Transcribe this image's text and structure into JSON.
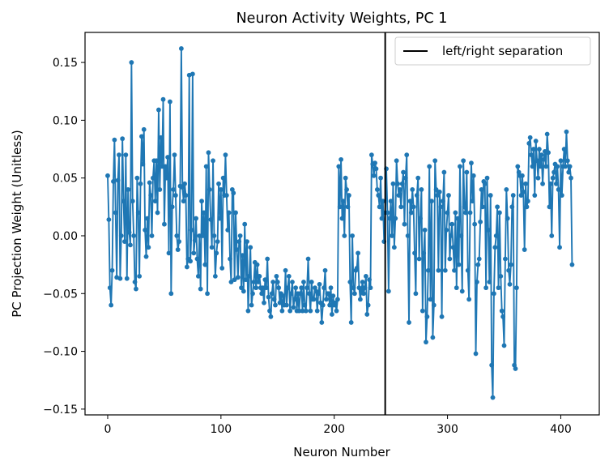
{
  "chart_data": {
    "type": "line",
    "title": "Neuron Activity Weights, PC 1",
    "xlabel": "Neuron Number",
    "ylabel": "PC Projection Weight (Unitless)",
    "xlim": [
      -20,
      434
    ],
    "ylim": [
      -0.155,
      0.176
    ],
    "xticks": [
      0,
      100,
      200,
      300,
      400
    ],
    "yticks": [
      -0.15,
      -0.1,
      -0.05,
      0.0,
      0.05,
      0.1,
      0.15
    ],
    "xtick_labels": [
      "0",
      "100",
      "200",
      "300",
      "400"
    ],
    "ytick_labels": [
      "−0.15",
      "−0.10",
      "−0.05",
      "0.00",
      "0.05",
      "0.10",
      "0.15"
    ],
    "grid": false,
    "legend": {
      "placement": "top-right",
      "entries": [
        "left/right separation"
      ]
    },
    "vline": {
      "x": 245,
      "name": "left/right separation",
      "color": "#000000"
    },
    "series": [
      {
        "color": "#1f77b4",
        "marker": "circle",
        "x_start": 0,
        "x_step": 1,
        "values": [
          0.052,
          0.014,
          -0.045,
          -0.06,
          -0.03,
          0.047,
          0.083,
          0.02,
          -0.036,
          0.048,
          0.07,
          -0.037,
          0.0,
          0.084,
          0.03,
          -0.005,
          0.07,
          -0.037,
          0.04,
          0.003,
          -0.008,
          0.15,
          0.03,
          0.0,
          -0.04,
          -0.046,
          0.05,
          0.02,
          -0.035,
          0.045,
          0.086,
          0.062,
          0.092,
          0.005,
          -0.018,
          0.015,
          -0.01,
          0.046,
          0.035,
          0.0,
          0.05,
          0.065,
          0.03,
          0.065,
          0.02,
          0.109,
          0.04,
          0.085,
          0.06,
          0.118,
          0.01,
          0.06,
          0.05,
          0.068,
          -0.015,
          0.116,
          -0.05,
          0.025,
          0.04,
          0.07,
          0.035,
          0.0,
          -0.012,
          -0.005,
          0.043,
          0.162,
          0.042,
          0.03,
          0.045,
          0.035,
          -0.027,
          -0.02,
          0.139,
          -0.022,
          0.005,
          0.14,
          -0.015,
          -0.004,
          0.015,
          -0.02,
          -0.035,
          0.0,
          -0.046,
          0.03,
          0.0,
          0.02,
          -0.025,
          0.06,
          -0.05,
          0.072,
          0.04,
          0.014,
          -0.01,
          0.065,
          0.0,
          -0.035,
          -0.015,
          -0.005,
          0.045,
          0.015,
          0.04,
          -0.028,
          0.05,
          0.035,
          0.07,
          0.035,
          0.005,
          0.02,
          -0.02,
          -0.04,
          0.04,
          0.037,
          -0.038,
          0.02,
          -0.012,
          -0.036,
          -0.005,
          0.0,
          -0.045,
          -0.017,
          -0.048,
          0.01,
          -0.038,
          -0.005,
          -0.065,
          -0.035,
          -0.01,
          -0.06,
          -0.05,
          -0.04,
          -0.023,
          -0.045,
          -0.025,
          -0.04,
          -0.035,
          -0.045,
          -0.05,
          -0.045,
          -0.058,
          -0.038,
          -0.045,
          -0.02,
          -0.053,
          -0.065,
          -0.07,
          -0.05,
          -0.04,
          -0.055,
          -0.06,
          -0.035,
          -0.04,
          -0.045,
          -0.058,
          -0.05,
          -0.065,
          -0.052,
          -0.06,
          -0.03,
          -0.06,
          -0.045,
          -0.035,
          -0.065,
          -0.05,
          -0.04,
          -0.062,
          -0.055,
          -0.045,
          -0.065,
          -0.05,
          -0.065,
          -0.05,
          -0.045,
          -0.065,
          -0.04,
          -0.06,
          -0.065,
          -0.045,
          -0.02,
          -0.05,
          -0.065,
          -0.04,
          -0.055,
          -0.055,
          -0.045,
          -0.048,
          -0.065,
          -0.05,
          -0.042,
          -0.058,
          -0.075,
          -0.06,
          -0.045,
          -0.03,
          -0.055,
          -0.05,
          -0.05,
          -0.06,
          -0.045,
          -0.068,
          -0.052,
          -0.06,
          -0.058,
          -0.065,
          -0.055,
          0.06,
          0.025,
          0.066,
          0.015,
          0.03,
          0.0,
          0.05,
          0.04,
          0.025,
          0.035,
          -0.04,
          -0.075,
          0.0,
          -0.045,
          -0.05,
          -0.03,
          -0.028,
          -0.015,
          -0.045,
          -0.055,
          -0.047,
          -0.04,
          -0.05,
          -0.045,
          -0.035,
          -0.068,
          -0.06,
          -0.038,
          -0.045,
          0.07,
          0.062,
          0.052,
          0.063,
          0.058,
          0.04,
          0.035,
          0.025,
          0.05,
          0.015,
          0.03,
          -0.005,
          0.02,
          0.058,
          0.02,
          -0.048,
          0.015,
          0.03,
          0.0,
          0.045,
          -0.01,
          0.015,
          0.065,
          0.045,
          0.035,
          0.04,
          0.025,
          0.045,
          0.055,
          0.01,
          0.05,
          0.07,
          0.0,
          -0.075,
          0.03,
          0.02,
          0.04,
          0.025,
          -0.015,
          -0.05,
          0.035,
          0.05,
          -0.02,
          0.015,
          0.04,
          -0.065,
          -0.015,
          0.005,
          -0.092,
          -0.07,
          -0.03,
          0.06,
          -0.055,
          0.03,
          -0.088,
          -0.06,
          0.065,
          0.04,
          0.035,
          -0.03,
          0.038,
          0.025,
          -0.07,
          0.03,
          0.055,
          -0.03,
          0.005,
          0.02,
          0.035,
          -0.02,
          0.0,
          0.01,
          -0.01,
          -0.03,
          0.02,
          -0.045,
          0.015,
          -0.025,
          0.06,
          0.0,
          -0.048,
          0.065,
          0.025,
          0.02,
          0.055,
          -0.03,
          -0.055,
          0.02,
          0.063,
          0.03,
          0.052,
          0.01,
          -0.102,
          -0.04,
          -0.025,
          -0.02,
          0.012,
          0.04,
          0.025,
          0.047,
          0.045,
          -0.045,
          0.05,
          0.005,
          -0.04,
          0.035,
          -0.112,
          -0.14,
          -0.05,
          -0.01,
          0.0,
          0.025,
          -0.045,
          0.02,
          -0.035,
          -0.065,
          -0.07,
          -0.095,
          -0.02,
          0.04,
          0.015,
          -0.03,
          -0.042,
          -0.025,
          0.025,
          0.035,
          -0.112,
          -0.115,
          -0.045,
          0.06,
          0.055,
          0.052,
          0.035,
          0.052,
          0.038,
          -0.012,
          0.045,
          0.025,
          0.03,
          0.08,
          0.085,
          0.07,
          0.06,
          0.075,
          0.035,
          0.082,
          0.065,
          0.05,
          0.075,
          0.06,
          0.07,
          0.045,
          0.066,
          0.073,
          0.06,
          0.088,
          0.072,
          0.025,
          0.045,
          0.0,
          0.05,
          0.055,
          0.062,
          0.045,
          0.06,
          0.04,
          -0.01,
          0.065,
          0.035,
          0.06,
          0.075,
          0.06,
          0.09,
          0.065,
          0.055,
          0.06,
          0.05,
          -0.025
        ]
      }
    ]
  }
}
